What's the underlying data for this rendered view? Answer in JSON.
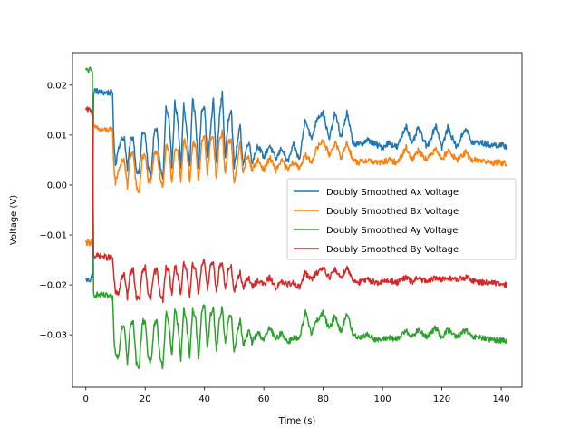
{
  "chart_data": {
    "type": "line",
    "title": "",
    "xlabel": "Time (s)",
    "ylabel": "Voltage (V)",
    "xlim": [
      -4.5,
      147
    ],
    "ylim": [
      -0.0405,
      0.0265
    ],
    "xticks": [
      0,
      20,
      40,
      60,
      80,
      100,
      120,
      140
    ],
    "xtick_labels": [
      "0",
      "20",
      "40",
      "60",
      "80",
      "100",
      "120",
      "140"
    ],
    "yticks": [
      -0.03,
      -0.02,
      -0.01,
      0.0,
      0.01,
      0.02
    ],
    "ytick_labels": [
      "−0.03",
      "−0.02",
      "−0.01",
      "0.00",
      "0.01",
      "0.02"
    ],
    "grid": false,
    "legend_position": "center-right",
    "series": [
      {
        "name": "Doubly Smoothed Ax Voltage",
        "color": "#1f77b4",
        "x": [
          0,
          1.5,
          2.2,
          2.6,
          3,
          5,
          7,
          9,
          9.5,
          10,
          11,
          12,
          13,
          14,
          15,
          16,
          17,
          18,
          19,
          20,
          21,
          22,
          23,
          24,
          25,
          26,
          27,
          28,
          29,
          30,
          31,
          32,
          33,
          34,
          35,
          36,
          37,
          38,
          39,
          40,
          41,
          42,
          43,
          44,
          45,
          46,
          47,
          48,
          49,
          50,
          51,
          52,
          53,
          54,
          55,
          56,
          58,
          60,
          62,
          64,
          66,
          68,
          70,
          72,
          74,
          76,
          78,
          80,
          82,
          84,
          86,
          88,
          90,
          92,
          95,
          98,
          100,
          102,
          105,
          108,
          110,
          112,
          115,
          118,
          120,
          122,
          125,
          128,
          130,
          133,
          136,
          139,
          142
        ],
        "y": [
          -0.019,
          -0.019,
          -0.018,
          0.018,
          0.019,
          0.0185,
          0.0185,
          0.0185,
          0.008,
          0.004,
          0.0075,
          0.009,
          0.0095,
          0.003,
          0.009,
          0.0095,
          0.003,
          0.0025,
          0.0105,
          0.01,
          0.0035,
          0.002,
          0.0105,
          0.011,
          0.004,
          0.001,
          0.0155,
          0.013,
          0.004,
          0.0165,
          0.013,
          0.003,
          0.016,
          0.011,
          0.0035,
          0.0175,
          0.013,
          0.003,
          0.015,
          0.016,
          0.005,
          0.0105,
          0.0175,
          0.004,
          0.0135,
          0.0185,
          0.005,
          0.013,
          0.0155,
          0.0035,
          0.008,
          0.012,
          0.004,
          0.007,
          0.009,
          0.0045,
          0.008,
          0.0055,
          0.008,
          0.005,
          0.0075,
          0.0045,
          0.008,
          0.005,
          0.0135,
          0.009,
          0.0135,
          0.0145,
          0.009,
          0.0145,
          0.0095,
          0.0145,
          0.0085,
          0.008,
          0.009,
          0.008,
          0.0075,
          0.0085,
          0.0075,
          0.012,
          0.008,
          0.0115,
          0.0075,
          0.012,
          0.0075,
          0.0115,
          0.0075,
          0.0115,
          0.0085,
          0.0085,
          0.008,
          0.008,
          0.0077
        ]
      },
      {
        "name": "Doubly Smoothed Bx Voltage",
        "color": "#ff7f0e",
        "x": [
          0,
          1.5,
          2.2,
          2.6,
          3,
          5,
          7,
          9,
          9.5,
          10,
          11,
          12,
          13,
          14,
          15,
          16,
          17,
          18,
          19,
          20,
          21,
          22,
          23,
          24,
          25,
          26,
          27,
          28,
          29,
          30,
          31,
          32,
          33,
          34,
          35,
          36,
          37,
          38,
          39,
          40,
          41,
          42,
          43,
          44,
          45,
          46,
          47,
          48,
          49,
          50,
          51,
          52,
          53,
          54,
          55,
          56,
          58,
          60,
          62,
          64,
          66,
          68,
          70,
          72,
          74,
          76,
          78,
          80,
          82,
          84,
          86,
          88,
          90,
          92,
          95,
          98,
          100,
          102,
          105,
          108,
          110,
          112,
          115,
          118,
          120,
          122,
          125,
          128,
          130,
          133,
          136,
          139,
          142
        ],
        "y": [
          -0.0115,
          -0.0115,
          -0.011,
          0.011,
          0.0115,
          0.011,
          0.011,
          0.011,
          0.003,
          0.0005,
          0.003,
          0.0045,
          0.005,
          -0.0005,
          0.006,
          0.0065,
          -0.0005,
          -0.0015,
          0.0055,
          0.006,
          0.001,
          0.0005,
          0.006,
          0.007,
          0.0015,
          -0.0005,
          0.008,
          0.0065,
          0.0005,
          0.0075,
          0.0065,
          0.0005,
          0.0095,
          0.007,
          0.0005,
          0.0085,
          0.008,
          0.0005,
          0.0085,
          0.0095,
          0.002,
          0.009,
          0.0095,
          0.001,
          0.009,
          0.0105,
          0.002,
          0.0085,
          0.009,
          0.0005,
          0.004,
          0.0085,
          0.0025,
          0.005,
          0.0055,
          0.003,
          0.005,
          0.003,
          0.0055,
          0.003,
          0.005,
          0.003,
          0.0045,
          0.0035,
          0.006,
          0.0045,
          0.0075,
          0.009,
          0.006,
          0.0085,
          0.0055,
          0.0085,
          0.005,
          0.0045,
          0.005,
          0.0045,
          0.0045,
          0.005,
          0.0045,
          0.0075,
          0.005,
          0.007,
          0.005,
          0.0075,
          0.005,
          0.007,
          0.005,
          0.0065,
          0.005,
          0.005,
          0.0045,
          0.0045,
          0.0043
        ]
      },
      {
        "name": "Doubly Smoothed Ay Voltage",
        "color": "#2ca02c",
        "x": [
          0,
          1.5,
          2.2,
          2.6,
          3,
          5,
          7,
          9,
          9.5,
          10,
          11,
          12,
          13,
          14,
          15,
          16,
          17,
          18,
          19,
          20,
          21,
          22,
          23,
          24,
          25,
          26,
          27,
          28,
          29,
          30,
          31,
          32,
          33,
          34,
          35,
          36,
          37,
          38,
          39,
          40,
          41,
          42,
          43,
          44,
          45,
          46,
          47,
          48,
          49,
          50,
          51,
          52,
          53,
          54,
          55,
          56,
          58,
          60,
          62,
          64,
          66,
          68,
          70,
          72,
          74,
          76,
          78,
          80,
          82,
          84,
          86,
          88,
          90,
          92,
          95,
          98,
          100,
          102,
          105,
          108,
          110,
          112,
          115,
          118,
          120,
          122,
          125,
          128,
          130,
          133,
          136,
          139,
          142
        ],
        "y": [
          0.023,
          0.023,
          0.0225,
          -0.0215,
          -0.022,
          -0.022,
          -0.0222,
          -0.0225,
          -0.031,
          -0.034,
          -0.0345,
          -0.0285,
          -0.028,
          -0.0355,
          -0.028,
          -0.0275,
          -0.0355,
          -0.0365,
          -0.0275,
          -0.027,
          -0.035,
          -0.0355,
          -0.028,
          -0.027,
          -0.035,
          -0.0365,
          -0.0255,
          -0.0275,
          -0.0345,
          -0.0245,
          -0.028,
          -0.035,
          -0.0245,
          -0.028,
          -0.0345,
          -0.025,
          -0.0265,
          -0.035,
          -0.0255,
          -0.024,
          -0.033,
          -0.026,
          -0.0245,
          -0.0335,
          -0.027,
          -0.0245,
          -0.032,
          -0.027,
          -0.026,
          -0.0335,
          -0.0295,
          -0.027,
          -0.032,
          -0.031,
          -0.029,
          -0.0315,
          -0.0295,
          -0.031,
          -0.0285,
          -0.031,
          -0.0295,
          -0.0315,
          -0.0305,
          -0.031,
          -0.0255,
          -0.0295,
          -0.027,
          -0.0255,
          -0.029,
          -0.026,
          -0.0295,
          -0.0255,
          -0.03,
          -0.0305,
          -0.03,
          -0.031,
          -0.031,
          -0.0305,
          -0.031,
          -0.029,
          -0.0305,
          -0.029,
          -0.0305,
          -0.0285,
          -0.0305,
          -0.029,
          -0.0305,
          -0.029,
          -0.0305,
          -0.0305,
          -0.031,
          -0.031,
          -0.0312
        ]
      },
      {
        "name": "Doubly Smoothed By Voltage",
        "color": "#d62728",
        "x": [
          0,
          1.5,
          2.2,
          2.6,
          3,
          5,
          7,
          9,
          9.5,
          10,
          11,
          12,
          13,
          14,
          15,
          16,
          17,
          18,
          19,
          20,
          21,
          22,
          23,
          24,
          25,
          26,
          27,
          28,
          29,
          30,
          31,
          32,
          33,
          34,
          35,
          36,
          37,
          38,
          39,
          40,
          41,
          42,
          43,
          44,
          45,
          46,
          47,
          48,
          49,
          50,
          51,
          52,
          53,
          54,
          55,
          56,
          58,
          60,
          62,
          64,
          66,
          68,
          70,
          72,
          74,
          76,
          78,
          80,
          82,
          84,
          86,
          88,
          90,
          92,
          95,
          98,
          100,
          102,
          105,
          108,
          110,
          112,
          115,
          118,
          120,
          122,
          125,
          128,
          130,
          133,
          136,
          139,
          142
        ],
        "y": [
          0.015,
          0.015,
          0.0145,
          -0.014,
          -0.0142,
          -0.0142,
          -0.0145,
          -0.0145,
          -0.019,
          -0.0215,
          -0.022,
          -0.0185,
          -0.018,
          -0.0225,
          -0.0175,
          -0.017,
          -0.0225,
          -0.023,
          -0.0175,
          -0.0165,
          -0.022,
          -0.0225,
          -0.0175,
          -0.017,
          -0.0215,
          -0.023,
          -0.0165,
          -0.017,
          -0.022,
          -0.016,
          -0.018,
          -0.0225,
          -0.0155,
          -0.0175,
          -0.022,
          -0.0155,
          -0.017,
          -0.022,
          -0.016,
          -0.015,
          -0.021,
          -0.0165,
          -0.0155,
          -0.0215,
          -0.0165,
          -0.0155,
          -0.021,
          -0.017,
          -0.0165,
          -0.0215,
          -0.019,
          -0.0175,
          -0.0205,
          -0.0195,
          -0.0185,
          -0.0205,
          -0.019,
          -0.02,
          -0.0185,
          -0.0205,
          -0.0195,
          -0.02,
          -0.0195,
          -0.0205,
          -0.0175,
          -0.019,
          -0.0175,
          -0.0165,
          -0.0185,
          -0.017,
          -0.0185,
          -0.0165,
          -0.019,
          -0.0195,
          -0.019,
          -0.0195,
          -0.0195,
          -0.019,
          -0.0195,
          -0.0185,
          -0.0195,
          -0.0185,
          -0.0195,
          -0.0185,
          -0.019,
          -0.0185,
          -0.019,
          -0.0185,
          -0.019,
          -0.0195,
          -0.0195,
          -0.0198,
          -0.02
        ]
      }
    ]
  }
}
